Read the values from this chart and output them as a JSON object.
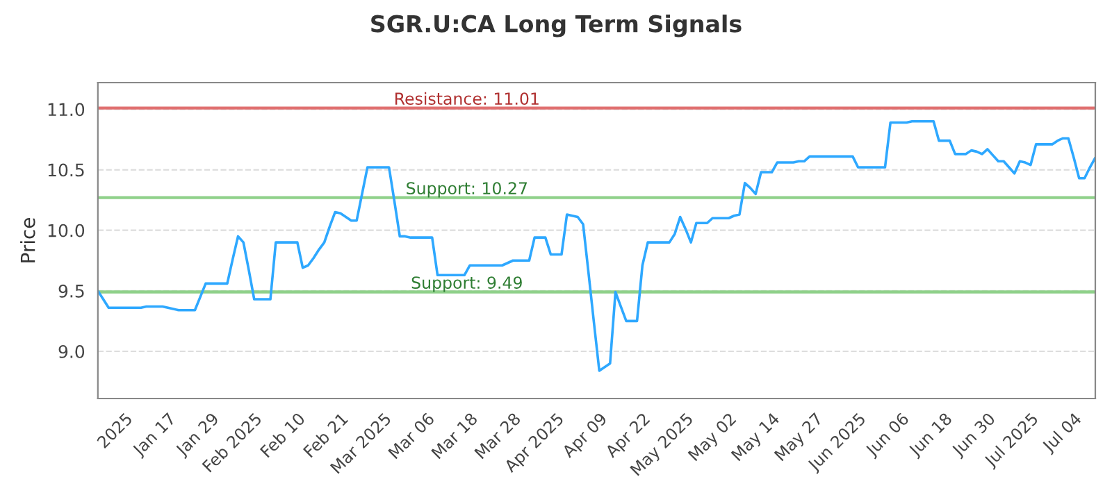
{
  "chart_data": {
    "type": "line",
    "title": "SGR.U:CA Long Term Signals",
    "ylabel": "Price",
    "categories": [
      null,
      null,
      null,
      null,
      null,
      "2025",
      null,
      null,
      null,
      null,
      null,
      null,
      null,
      "Jan 17",
      null,
      null,
      null,
      null,
      null,
      null,
      null,
      "Jan 29",
      null,
      null,
      null,
      null,
      null,
      null,
      null,
      "Feb 2025",
      null,
      null,
      null,
      null,
      null,
      null,
      null,
      "Feb 10",
      null,
      null,
      null,
      null,
      null,
      null,
      null,
      "Feb 21",
      null,
      null,
      null,
      null,
      null,
      null,
      null,
      "Mar 2025",
      null,
      null,
      null,
      null,
      null,
      null,
      null,
      "Mar 06",
      null,
      null,
      null,
      null,
      null,
      null,
      null,
      "Mar 18",
      null,
      null,
      null,
      null,
      null,
      null,
      null,
      "Mar 28",
      null,
      null,
      null,
      null,
      null,
      null,
      null,
      "Apr 2025",
      null,
      null,
      null,
      null,
      null,
      null,
      null,
      "Apr 09",
      null,
      null,
      null,
      null,
      null,
      null,
      null,
      "Apr 22",
      null,
      null,
      null,
      null,
      null,
      null,
      null,
      "May 2025",
      null,
      null,
      null,
      null,
      null,
      null,
      null,
      "May 02",
      null,
      null,
      null,
      null,
      null,
      null,
      null,
      "May 14",
      null,
      null,
      null,
      null,
      null,
      null,
      null,
      "May 27",
      null,
      null,
      null,
      null,
      null,
      null,
      null,
      "Jun 2025",
      null,
      null,
      null,
      null,
      null,
      null,
      null,
      "Jun 06",
      null,
      null,
      null,
      null,
      null,
      null,
      null,
      "Jun 18",
      null,
      null,
      null,
      null,
      null,
      null,
      null,
      "Jun 30",
      null,
      null,
      null,
      null,
      null,
      null,
      null,
      "Jul 2025",
      null,
      null,
      null,
      null,
      null,
      null,
      null,
      "Jul 04",
      null,
      null,
      null,
      null
    ],
    "series": [
      {
        "color": "#2ea8ff",
        "values": [
          9.5,
          9.43,
          9.36,
          9.36,
          9.36,
          9.36,
          9.36,
          9.36,
          9.36,
          9.37,
          9.37,
          9.37,
          9.37,
          9.36,
          9.35,
          9.34,
          9.34,
          9.34,
          9.34,
          9.45,
          9.56,
          9.56,
          9.56,
          9.56,
          9.56,
          9.76,
          9.95,
          9.9,
          9.67,
          9.43,
          9.43,
          9.43,
          9.43,
          9.9,
          9.9,
          9.9,
          9.9,
          9.9,
          9.69,
          9.71,
          9.77,
          9.84,
          9.9,
          10.03,
          10.15,
          10.14,
          10.11,
          10.08,
          10.08,
          10.3,
          10.52,
          10.52,
          10.52,
          10.52,
          10.52,
          10.24,
          9.95,
          9.95,
          9.94,
          9.94,
          9.94,
          9.94,
          9.94,
          9.63,
          9.63,
          9.63,
          9.63,
          9.63,
          9.63,
          9.71,
          9.71,
          9.71,
          9.71,
          9.71,
          9.71,
          9.71,
          9.73,
          9.75,
          9.75,
          9.75,
          9.75,
          9.94,
          9.94,
          9.94,
          9.8,
          9.8,
          9.8,
          10.13,
          10.12,
          10.11,
          10.05,
          9.65,
          9.24,
          8.84,
          8.87,
          8.9,
          9.49,
          9.37,
          9.25,
          9.25,
          9.25,
          9.71,
          9.9,
          9.9,
          9.9,
          9.9,
          9.9,
          9.97,
          10.11,
          10.01,
          9.9,
          10.06,
          10.06,
          10.06,
          10.1,
          10.1,
          10.1,
          10.1,
          10.12,
          10.13,
          10.39,
          10.35,
          10.3,
          10.48,
          10.48,
          10.48,
          10.56,
          10.56,
          10.56,
          10.56,
          10.57,
          10.57,
          10.61,
          10.61,
          10.61,
          10.61,
          10.61,
          10.61,
          10.61,
          10.61,
          10.61,
          10.52,
          10.52,
          10.52,
          10.52,
          10.52,
          10.52,
          10.89,
          10.89,
          10.89,
          10.89,
          10.9,
          10.9,
          10.9,
          10.9,
          10.9,
          10.74,
          10.74,
          10.74,
          10.63,
          10.63,
          10.63,
          10.66,
          10.65,
          10.63,
          10.67,
          10.62,
          10.57,
          10.57,
          10.52,
          10.47,
          10.57,
          10.56,
          10.54,
          10.71,
          10.71,
          10.71,
          10.71,
          10.74,
          10.76,
          10.76,
          10.6,
          10.43,
          10.43,
          10.52,
          10.6
        ]
      }
    ],
    "ylim": [
      8.61,
      11.22
    ],
    "yticks": [
      {
        "value": 9.0,
        "label": "9.0"
      },
      {
        "value": 9.5,
        "label": "9.5"
      },
      {
        "value": 10.0,
        "label": "10.0"
      },
      {
        "value": 10.5,
        "label": "10.5"
      },
      {
        "value": 11.0,
        "label": "11.0"
      }
    ],
    "grid": "y",
    "ref_lines": [
      {
        "axis": "y",
        "value": 11.01,
        "label": "Resistance: 11.01",
        "color": "#e07070"
      },
      {
        "axis": "y",
        "value": 10.27,
        "label": "Support: 10.27",
        "color": "#8fd18a"
      },
      {
        "axis": "y",
        "value": 9.49,
        "label": "Support: 9.49",
        "color": "#8fd18a"
      }
    ]
  }
}
